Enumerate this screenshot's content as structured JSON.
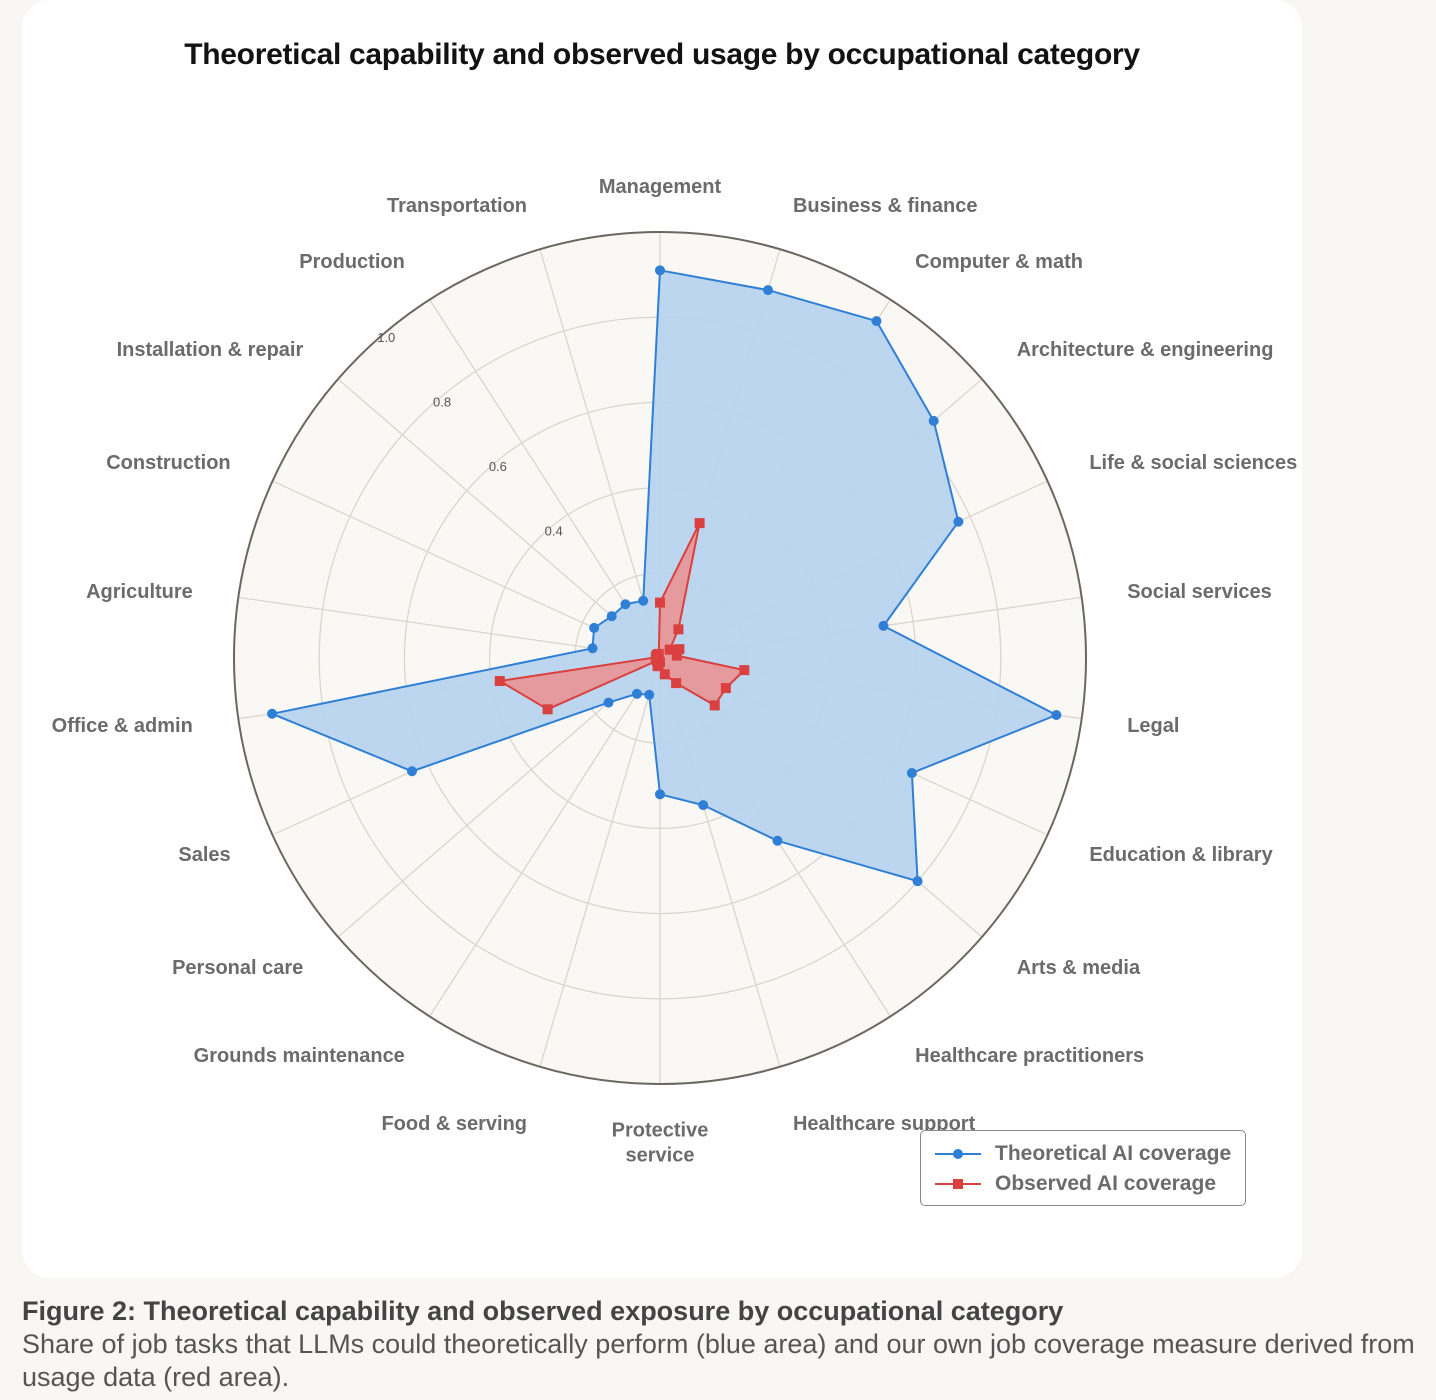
{
  "title": "Theoretical capability and observed usage by occupational category",
  "legend": {
    "theoretical": "Theoretical AI coverage",
    "observed": "Observed AI coverage"
  },
  "caption": {
    "title": "Figure 2: Theoretical capability and observed exposure by occupational category",
    "description": "Share of job tasks that LLMs could theoretically perform (blue area) and our own job coverage measure derived from usage data (red area)."
  },
  "colors": {
    "theoretical": "#2f7fd6",
    "theoretical_fill": "#b9d4ee",
    "observed": "#d9403f",
    "observed_fill": "#ec8f8f",
    "grid": "#d9d6cc",
    "outer_ring": "#6b675f",
    "plot_bg": "#f9f8f4"
  },
  "chart_data": {
    "type": "radar",
    "title": "Theoretical capability and observed usage by occupational category",
    "categories": [
      "Management",
      "Business & finance",
      "Computer & math",
      "Architecture & engineering",
      "Life & social sciences",
      "Social services",
      "Legal",
      "Education & library",
      "Arts & media",
      "Healthcare practitioners",
      "Healthcare support",
      "Protective service",
      "Food & serving",
      "Grounds maintenance",
      "Personal care",
      "Sales",
      "Office & admin",
      "Agriculture",
      "Construction",
      "Installation & repair",
      "Production",
      "Transportation"
    ],
    "category_labels": [
      [
        "Management"
      ],
      [
        "Business & finance"
      ],
      [
        "Computer & math"
      ],
      [
        "Architecture & engineering"
      ],
      [
        "Life & social sciences"
      ],
      [
        "Social services"
      ],
      [
        "Legal"
      ],
      [
        "Education & library"
      ],
      [
        "Arts & media"
      ],
      [
        "Healthcare practitioners"
      ],
      [
        "Healthcare support"
      ],
      [
        "Protective",
        "service"
      ],
      [
        "Food & serving"
      ],
      [
        "Grounds maintenance"
      ],
      [
        "Personal care"
      ],
      [
        "Sales"
      ],
      [
        "Office & admin"
      ],
      [
        "Agriculture"
      ],
      [
        "Construction"
      ],
      [
        "Installation & repair"
      ],
      [
        "Production"
      ],
      [
        "Transportation"
      ]
    ],
    "rlim": [
      0,
      1.0
    ],
    "ticks": [
      0.4,
      0.6,
      0.8,
      1.0
    ],
    "tick_labels": [
      "0.4",
      "0.6",
      "0.8",
      "1.0"
    ],
    "series": [
      {
        "name": "Theoretical AI coverage",
        "values": [
          0.91,
          0.9,
          0.94,
          0.85,
          0.77,
          0.53,
          0.94,
          0.65,
          0.8,
          0.51,
          0.36,
          0.32,
          0.09,
          0.1,
          0.16,
          0.64,
          0.92,
          0.16,
          0.17,
          0.15,
          0.15,
          0.14
        ]
      },
      {
        "name": "Observed AI coverage",
        "values": [
          0.13,
          0.33,
          0.08,
          0.03,
          0.05,
          0.04,
          0.2,
          0.17,
          0.17,
          0.07,
          0.04,
          0.01,
          0.02,
          0.01,
          0.01,
          0.29,
          0.38,
          0.01,
          0.01,
          0.01,
          0.01,
          0.01
        ]
      }
    ],
    "grid": true,
    "legend_position": "bottom-right"
  }
}
